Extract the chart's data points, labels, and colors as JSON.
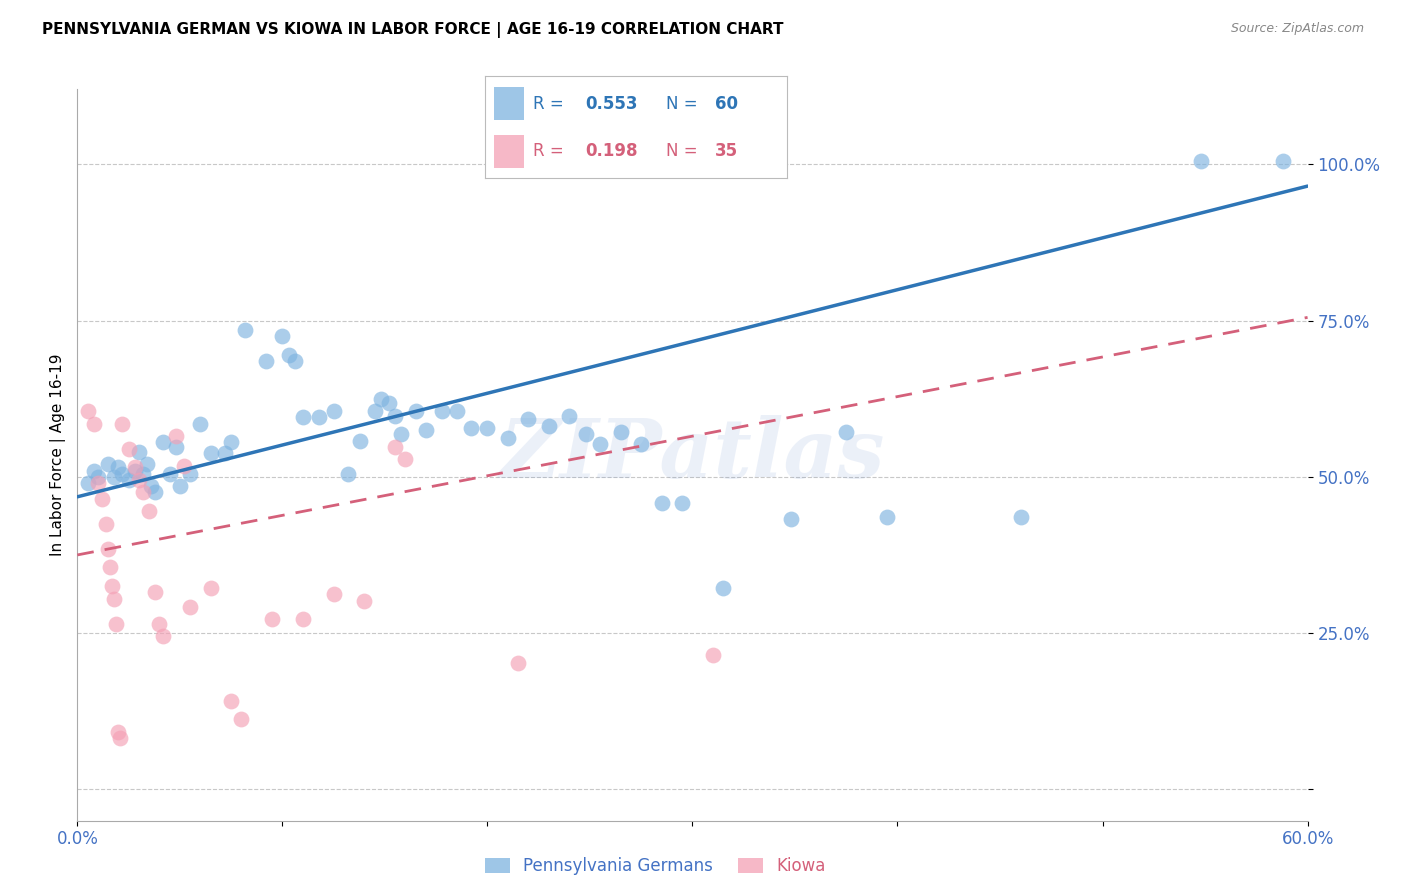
{
  "title": "PENNSYLVANIA GERMAN VS KIOWA IN LABOR FORCE | AGE 16-19 CORRELATION CHART",
  "source": "Source: ZipAtlas.com",
  "ylabel": "In Labor Force | Age 16-19",
  "xlim": [
    0.0,
    0.6
  ],
  "ylim": [
    -0.05,
    1.12
  ],
  "xticks": [
    0.0,
    0.1,
    0.2,
    0.3,
    0.4,
    0.5,
    0.6
  ],
  "xticklabels": [
    "0.0%",
    "",
    "",
    "",
    "",
    "",
    "60.0%"
  ],
  "ytick_positions": [
    0.0,
    0.25,
    0.5,
    0.75,
    1.0
  ],
  "ytick_labels": [
    "",
    "25.0%",
    "50.0%",
    "75.0%",
    "100.0%"
  ],
  "blue_color": "#7EB3E0",
  "pink_color": "#F4A0B5",
  "blue_line_color": "#2E75B6",
  "pink_line_color": "#D4607A",
  "axis_color": "#4472C4",
  "watermark": "ZIPatlas",
  "blue_scatter": [
    [
      0.005,
      0.49
    ],
    [
      0.008,
      0.51
    ],
    [
      0.01,
      0.5
    ],
    [
      0.015,
      0.52
    ],
    [
      0.018,
      0.5
    ],
    [
      0.02,
      0.515
    ],
    [
      0.022,
      0.505
    ],
    [
      0.025,
      0.495
    ],
    [
      0.028,
      0.51
    ],
    [
      0.03,
      0.54
    ],
    [
      0.032,
      0.505
    ],
    [
      0.034,
      0.52
    ],
    [
      0.036,
      0.485
    ],
    [
      0.038,
      0.475
    ],
    [
      0.042,
      0.555
    ],
    [
      0.045,
      0.505
    ],
    [
      0.048,
      0.548
    ],
    [
      0.05,
      0.485
    ],
    [
      0.055,
      0.505
    ],
    [
      0.06,
      0.585
    ],
    [
      0.065,
      0.538
    ],
    [
      0.072,
      0.538
    ],
    [
      0.075,
      0.555
    ],
    [
      0.082,
      0.735
    ],
    [
      0.092,
      0.685
    ],
    [
      0.1,
      0.725
    ],
    [
      0.103,
      0.695
    ],
    [
      0.106,
      0.685
    ],
    [
      0.11,
      0.595
    ],
    [
      0.118,
      0.595
    ],
    [
      0.125,
      0.605
    ],
    [
      0.132,
      0.505
    ],
    [
      0.138,
      0.558
    ],
    [
      0.145,
      0.605
    ],
    [
      0.148,
      0.625
    ],
    [
      0.152,
      0.618
    ],
    [
      0.155,
      0.598
    ],
    [
      0.158,
      0.568
    ],
    [
      0.165,
      0.605
    ],
    [
      0.17,
      0.575
    ],
    [
      0.178,
      0.605
    ],
    [
      0.185,
      0.605
    ],
    [
      0.192,
      0.578
    ],
    [
      0.2,
      0.578
    ],
    [
      0.21,
      0.562
    ],
    [
      0.22,
      0.592
    ],
    [
      0.23,
      0.582
    ],
    [
      0.24,
      0.598
    ],
    [
      0.248,
      0.568
    ],
    [
      0.255,
      0.552
    ],
    [
      0.265,
      0.572
    ],
    [
      0.275,
      0.552
    ],
    [
      0.285,
      0.458
    ],
    [
      0.295,
      0.458
    ],
    [
      0.315,
      0.322
    ],
    [
      0.348,
      0.432
    ],
    [
      0.375,
      0.572
    ],
    [
      0.395,
      0.435
    ],
    [
      0.46,
      0.435
    ],
    [
      0.548,
      1.005
    ],
    [
      0.588,
      1.005
    ]
  ],
  "pink_scatter": [
    [
      0.005,
      0.605
    ],
    [
      0.008,
      0.585
    ],
    [
      0.01,
      0.49
    ],
    [
      0.012,
      0.465
    ],
    [
      0.014,
      0.425
    ],
    [
      0.015,
      0.385
    ],
    [
      0.016,
      0.355
    ],
    [
      0.017,
      0.325
    ],
    [
      0.018,
      0.305
    ],
    [
      0.019,
      0.265
    ],
    [
      0.02,
      0.092
    ],
    [
      0.021,
      0.082
    ],
    [
      0.022,
      0.585
    ],
    [
      0.025,
      0.545
    ],
    [
      0.028,
      0.515
    ],
    [
      0.03,
      0.495
    ],
    [
      0.032,
      0.475
    ],
    [
      0.035,
      0.445
    ],
    [
      0.038,
      0.315
    ],
    [
      0.04,
      0.265
    ],
    [
      0.042,
      0.245
    ],
    [
      0.048,
      0.565
    ],
    [
      0.052,
      0.518
    ],
    [
      0.055,
      0.292
    ],
    [
      0.065,
      0.322
    ],
    [
      0.075,
      0.142
    ],
    [
      0.08,
      0.112
    ],
    [
      0.095,
      0.272
    ],
    [
      0.11,
      0.272
    ],
    [
      0.125,
      0.312
    ],
    [
      0.14,
      0.302
    ],
    [
      0.155,
      0.548
    ],
    [
      0.16,
      0.528
    ],
    [
      0.215,
      0.202
    ],
    [
      0.31,
      0.215
    ]
  ],
  "blue_trend": [
    0.0,
    0.6,
    0.468,
    0.965
  ],
  "pink_trend": [
    0.0,
    0.6,
    0.375,
    0.755
  ]
}
